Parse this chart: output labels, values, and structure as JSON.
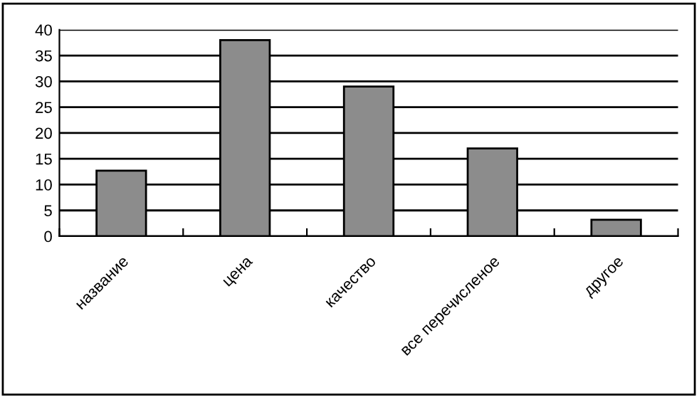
{
  "chart_data": {
    "type": "bar",
    "categories": [
      "название",
      "цена",
      "качество",
      "все перечисленое",
      "другое"
    ],
    "values": [
      12.7,
      38,
      29,
      17,
      3.2
    ],
    "color": "#8c8c8c",
    "ylim": [
      0,
      40
    ],
    "yticks": [
      0,
      5,
      10,
      15,
      20,
      25,
      30,
      35,
      40
    ],
    "grid": "y"
  }
}
